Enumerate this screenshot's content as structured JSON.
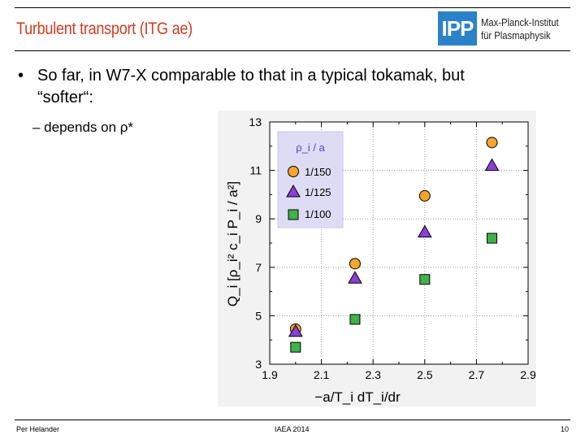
{
  "header": {
    "title": "Turbulent transport (ITG ae)",
    "logo_text": "IPP",
    "institute_line1": "Max-Planck-Institut",
    "institute_line2": "für Plasmaphysik"
  },
  "content": {
    "bullet_symbol": "•",
    "bullet_line1": "So far, in W7-X comparable to that in a typical tokamak, but",
    "bullet_line2": "“softer“:",
    "sub_bullet": "– depends on ρ*"
  },
  "footer": {
    "author": "Per Helander",
    "event": "IAEA 2014",
    "page": "10"
  },
  "colors": {
    "title": "#d33b1f",
    "logo_bg": "#2c82c9",
    "orange": "#f5a52a",
    "purple": "#8a3fd6",
    "green": "#3fb24a",
    "legend_bg": "#dedcf4",
    "legend_title": "#5a3cc8"
  },
  "chart_data": {
    "type": "scatter",
    "xlabel": "−a/T_i dT_i/dr",
    "ylabel": "Q_i [ρ_i² c_i P_i / a²]",
    "xlim": [
      1.9,
      2.9
    ],
    "ylim": [
      3,
      13
    ],
    "xticks": [
      "1.9",
      "2.1",
      "2.3",
      "2.5",
      "2.7",
      "2.9"
    ],
    "yticks": [
      "3",
      "5",
      "7",
      "9",
      "11",
      "13"
    ],
    "grid": true,
    "legend_title": "ρ_i / a",
    "legend_position": "top-left",
    "series": [
      {
        "name": "1/150",
        "marker": "circle",
        "color": "#f5a52a",
        "x": [
          2.0,
          2.23,
          2.5,
          2.76
        ],
        "y": [
          4.45,
          7.15,
          9.95,
          12.15
        ]
      },
      {
        "name": "1/125",
        "marker": "triangle",
        "color": "#8a3fd6",
        "x": [
          2.0,
          2.23,
          2.5,
          2.76
        ],
        "y": [
          4.35,
          6.55,
          8.45,
          11.2
        ]
      },
      {
        "name": "1/100",
        "marker": "square",
        "color": "#3fb24a",
        "x": [
          2.0,
          2.23,
          2.5,
          2.76
        ],
        "y": [
          3.7,
          4.85,
          6.5,
          8.2
        ]
      }
    ]
  }
}
